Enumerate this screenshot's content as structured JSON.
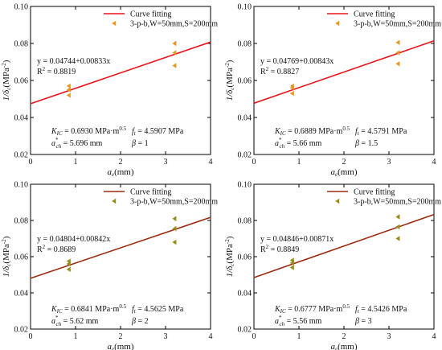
{
  "chart_data": [
    {
      "type": "scatter",
      "panel": "top-left",
      "xlabel": "a_e(mm)",
      "ylabel": "1/δ_c(MPa^-2)",
      "xlim": [
        0,
        4
      ],
      "ylim": [
        0.02,
        0.1
      ],
      "xticks": [
        "0",
        "1",
        "2",
        "3",
        "4"
      ],
      "yticks": [
        "0.02",
        "0.04",
        "0.06",
        "0.08",
        "0.10"
      ],
      "legend_position": "top-right",
      "series": [
        {
          "name": "Curve fitting",
          "kind": "line",
          "color": "#e8141b",
          "intercept": 0.04744,
          "slope": 0.00833,
          "x_range": [
            0,
            4
          ]
        },
        {
          "name": "3-p-b,W=50mm,S=200mm",
          "kind": "points",
          "marker": "left-triangle",
          "color": "#e8961e",
          "points": [
            [
              0.85,
              0.052
            ],
            [
              0.85,
              0.055
            ],
            [
              0.85,
              0.057
            ],
            [
              3.2,
              0.068
            ],
            [
              3.2,
              0.075
            ],
            [
              3.2,
              0.08
            ]
          ]
        }
      ],
      "annotations": {
        "equation": "y = 0.04744+0.00833x",
        "r2_label": "R",
        "r2_sup": "2",
        "r2_value": " = 0.8819",
        "kic_label": "K",
        "kic_sub": "IC",
        "kic_value": "= 0.6930 MPa·m",
        "kic_sup": "0.5",
        "ft_label": "f",
        "ft_sub": "t",
        "ft_value": "= 4.5907 MPa",
        "ach_label": "a",
        "ach_sup": "*",
        "ach_sub": "ch",
        "ach_value": "= 5.696 mm",
        "beta_label": "β",
        "beta_value": " = 1"
      }
    },
    {
      "type": "scatter",
      "panel": "top-right",
      "xlabel": "a_e(mm)",
      "ylabel": "1/δ_c(MPa^-2)",
      "xlim": [
        0,
        4
      ],
      "ylim": [
        0.02,
        0.1
      ],
      "xticks": [
        "0",
        "1",
        "2",
        "3",
        "4"
      ],
      "yticks": [
        "0.02",
        "0.04",
        "0.06",
        "0.08",
        "0.10"
      ],
      "legend_position": "top-right",
      "series": [
        {
          "name": "Curve fitting",
          "kind": "line",
          "color": "#e8141b",
          "intercept": 0.04769,
          "slope": 0.00843,
          "x_range": [
            0,
            4
          ]
        },
        {
          "name": "3-p-b,W=50mm,S=200mm",
          "kind": "points",
          "marker": "left-triangle",
          "color": "#e8961e",
          "points": [
            [
              0.85,
              0.053
            ],
            [
              0.85,
              0.056
            ],
            [
              0.85,
              0.057
            ],
            [
              3.2,
              0.069
            ],
            [
              3.2,
              0.075
            ],
            [
              3.2,
              0.0805
            ]
          ]
        }
      ],
      "annotations": {
        "equation": "y = 0.04769+0.00843x",
        "r2_label": "R",
        "r2_sup": "2",
        "r2_value": " = 0.8827",
        "kic_label": "K",
        "kic_sub": "IC",
        "kic_value": "= 0.6889 MPa·m",
        "kic_sup": "0.5",
        "ft_label": "f",
        "ft_sub": "t",
        "ft_value": "= 4.5791 MPa",
        "ach_label": "a",
        "ach_sup": "*",
        "ach_sub": "ch",
        "ach_value": "= 5.66 mm",
        "beta_label": "β",
        "beta_value": " = 1.5"
      }
    },
    {
      "type": "scatter",
      "panel": "bottom-left",
      "xlabel": "a_e(mm)",
      "ylabel": "1/δ_c(MPa^-2)",
      "xlim": [
        0,
        4
      ],
      "ylim": [
        0.02,
        0.1
      ],
      "xticks": [
        "0",
        "1",
        "2",
        "3",
        "4"
      ],
      "yticks": [
        "0.02",
        "0.04",
        "0.06",
        "0.08",
        "0.10"
      ],
      "legend_position": "top-right",
      "series": [
        {
          "name": "Curve fitting",
          "kind": "line",
          "color": "#9a2d10",
          "intercept": 0.04804,
          "slope": 0.00842,
          "x_range": [
            0,
            4
          ]
        },
        {
          "name": "3-p-b,W=50mm,S=200mm",
          "kind": "points",
          "marker": "left-triangle",
          "color": "#9a8a1a",
          "points": [
            [
              0.85,
              0.053
            ],
            [
              0.85,
              0.056
            ],
            [
              0.85,
              0.0575
            ],
            [
              3.2,
              0.068
            ],
            [
              3.2,
              0.0755
            ],
            [
              3.2,
              0.081
            ]
          ]
        }
      ],
      "annotations": {
        "equation": "y = 0.04804+0.00842x",
        "r2_label": "R",
        "r2_sup": "2",
        "r2_value": " = 0.8689",
        "kic_label": "K",
        "kic_sub": "IC",
        "kic_value": "= 0.6841 MPa·m",
        "kic_sup": "0.5",
        "ft_label": "f",
        "ft_sub": "t",
        "ft_value": "= 4.5625 MPa",
        "ach_label": "a",
        "ach_sup": "*",
        "ach_sub": "ch",
        "ach_value": "= 5.62 mm",
        "beta_label": "β",
        "beta_value": " = 2"
      }
    },
    {
      "type": "scatter",
      "panel": "bottom-right",
      "xlabel": "a_e(mm)",
      "ylabel": "1/δ_c(MPa^-2)",
      "xlim": [
        0,
        4
      ],
      "ylim": [
        0.02,
        0.1
      ],
      "xticks": [
        "0",
        "1",
        "2",
        "3",
        "4"
      ],
      "yticks": [
        "0.02",
        "0.04",
        "0.06",
        "0.08",
        "0.10"
      ],
      "legend_position": "top-right",
      "series": [
        {
          "name": "Curve fitting",
          "kind": "line",
          "color": "#9a2d10",
          "intercept": 0.04846,
          "slope": 0.00871,
          "x_range": [
            0,
            4
          ]
        },
        {
          "name": "3-p-b,W=50mm,S=200mm",
          "kind": "points",
          "marker": "left-triangle",
          "color": "#9a8a1a",
          "points": [
            [
              0.85,
              0.054
            ],
            [
              0.85,
              0.0565
            ],
            [
              0.85,
              0.058
            ],
            [
              3.2,
              0.07
            ],
            [
              3.2,
              0.0765
            ],
            [
              3.2,
              0.082
            ]
          ]
        }
      ],
      "annotations": {
        "equation": "y = 0.04846+0.00871x",
        "r2_label": "R",
        "r2_sup": "2",
        "r2_value": " = 0.8849",
        "kic_label": "K",
        "kic_sub": "IC",
        "kic_value": "= 0.6777 MPa·m",
        "kic_sup": "0.5",
        "ft_label": "f",
        "ft_sub": "t",
        "ft_value": "= 4.5426 MPa",
        "ach_label": "a",
        "ach_sup": "*",
        "ach_sub": "ch",
        "ach_value": "= 5.56 mm",
        "beta_label": "β",
        "beta_value": " = 3"
      }
    }
  ]
}
